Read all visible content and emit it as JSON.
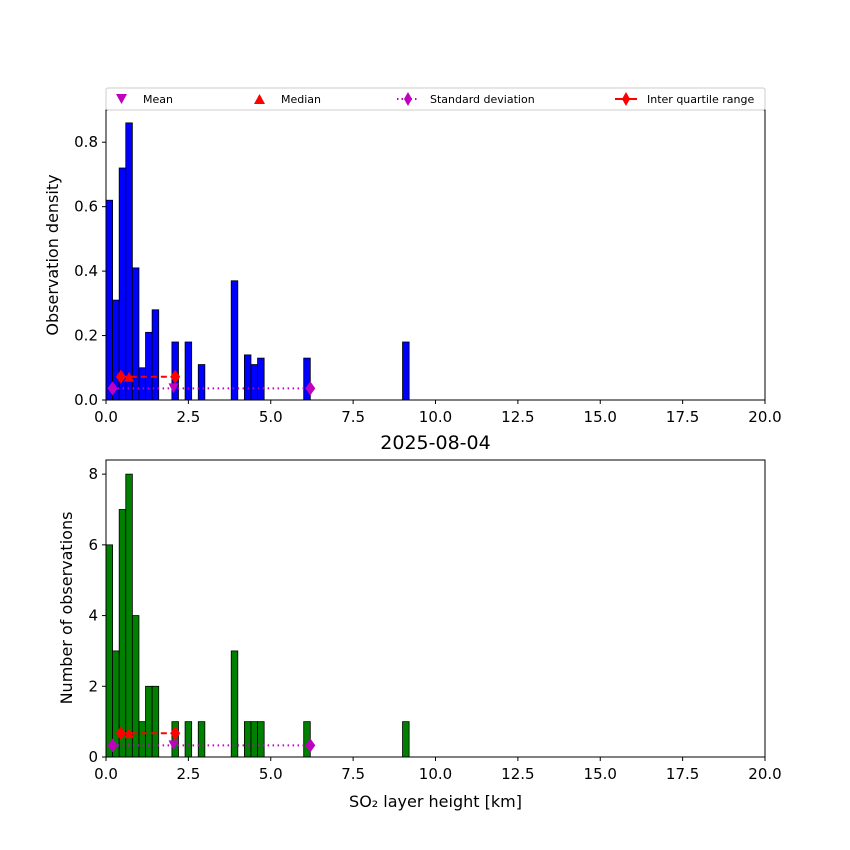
{
  "legend": {
    "items": [
      {
        "label": "Mean",
        "marker": "triangle-down",
        "color": "#bf00bf"
      },
      {
        "label": "Median",
        "marker": "triangle-up",
        "color": "#ff0000"
      },
      {
        "label": "Standard deviation",
        "marker": "diamond",
        "line": "dotted",
        "color": "#bf00bf"
      },
      {
        "label": "Inter quartile range",
        "marker": "diamond",
        "line": "solid",
        "color": "#ff0000"
      }
    ]
  },
  "chart_data": [
    {
      "type": "bar",
      "title": "",
      "xlabel": "",
      "ylabel": "Observation density",
      "xlim": [
        0,
        20
      ],
      "ylim": [
        0,
        0.9
      ],
      "xticks": [
        "0.0",
        "2.5",
        "5.0",
        "7.5",
        "10.0",
        "12.5",
        "15.0",
        "17.5",
        "20.0"
      ],
      "yticks": [
        "0.0",
        "0.2",
        "0.4",
        "0.6",
        "0.8"
      ],
      "bar_color": "#0000ff",
      "bin_width": 0.2,
      "bins": [
        {
          "x": 0.0,
          "y": 0.62
        },
        {
          "x": 0.2,
          "y": 0.31
        },
        {
          "x": 0.4,
          "y": 0.72
        },
        {
          "x": 0.6,
          "y": 0.86
        },
        {
          "x": 0.8,
          "y": 0.41
        },
        {
          "x": 1.0,
          "y": 0.1
        },
        {
          "x": 1.2,
          "y": 0.21
        },
        {
          "x": 1.4,
          "y": 0.28
        },
        {
          "x": 2.0,
          "y": 0.18
        },
        {
          "x": 2.4,
          "y": 0.18
        },
        {
          "x": 2.8,
          "y": 0.11
        },
        {
          "x": 3.8,
          "y": 0.37
        },
        {
          "x": 4.2,
          "y": 0.14
        },
        {
          "x": 4.4,
          "y": 0.11
        },
        {
          "x": 4.6,
          "y": 0.13
        },
        {
          "x": 6.0,
          "y": 0.13
        },
        {
          "x": 9.0,
          "y": 0.18
        }
      ],
      "stats": {
        "mean": {
          "x": 2.05,
          "y": 0.036
        },
        "median": {
          "x": 0.7,
          "y": 0.072
        },
        "std": {
          "x0": 0.2,
          "x1": 6.2,
          "y": 0.036
        },
        "iqr": {
          "x0": 0.45,
          "x1": 2.1,
          "y": 0.072
        }
      }
    },
    {
      "type": "bar",
      "title": "2025-08-04",
      "xlabel": "SO₂ layer height [km]",
      "ylabel": "Number of observations",
      "xlim": [
        0,
        20
      ],
      "ylim": [
        0,
        8.4
      ],
      "xticks": [
        "0.0",
        "2.5",
        "5.0",
        "7.5",
        "10.0",
        "12.5",
        "15.0",
        "17.5",
        "20.0"
      ],
      "yticks": [
        "0",
        "2",
        "4",
        "6",
        "8"
      ],
      "bar_color": "#008000",
      "bin_width": 0.2,
      "bins": [
        {
          "x": 0.0,
          "y": 6
        },
        {
          "x": 0.2,
          "y": 3
        },
        {
          "x": 0.4,
          "y": 7
        },
        {
          "x": 0.6,
          "y": 8
        },
        {
          "x": 0.8,
          "y": 4
        },
        {
          "x": 1.0,
          "y": 1
        },
        {
          "x": 1.2,
          "y": 2
        },
        {
          "x": 1.4,
          "y": 2
        },
        {
          "x": 2.0,
          "y": 1
        },
        {
          "x": 2.4,
          "y": 1
        },
        {
          "x": 2.8,
          "y": 1
        },
        {
          "x": 3.8,
          "y": 3
        },
        {
          "x": 4.2,
          "y": 1
        },
        {
          "x": 4.4,
          "y": 1
        },
        {
          "x": 4.6,
          "y": 1
        },
        {
          "x": 6.0,
          "y": 1
        },
        {
          "x": 9.0,
          "y": 1
        }
      ],
      "stats": {
        "mean": {
          "x": 2.05,
          "y": 0.33
        },
        "median": {
          "x": 0.7,
          "y": 0.67
        },
        "std": {
          "x0": 0.2,
          "x1": 6.2,
          "y": 0.33
        },
        "iqr": {
          "x0": 0.45,
          "x1": 2.1,
          "y": 0.67
        }
      }
    }
  ]
}
